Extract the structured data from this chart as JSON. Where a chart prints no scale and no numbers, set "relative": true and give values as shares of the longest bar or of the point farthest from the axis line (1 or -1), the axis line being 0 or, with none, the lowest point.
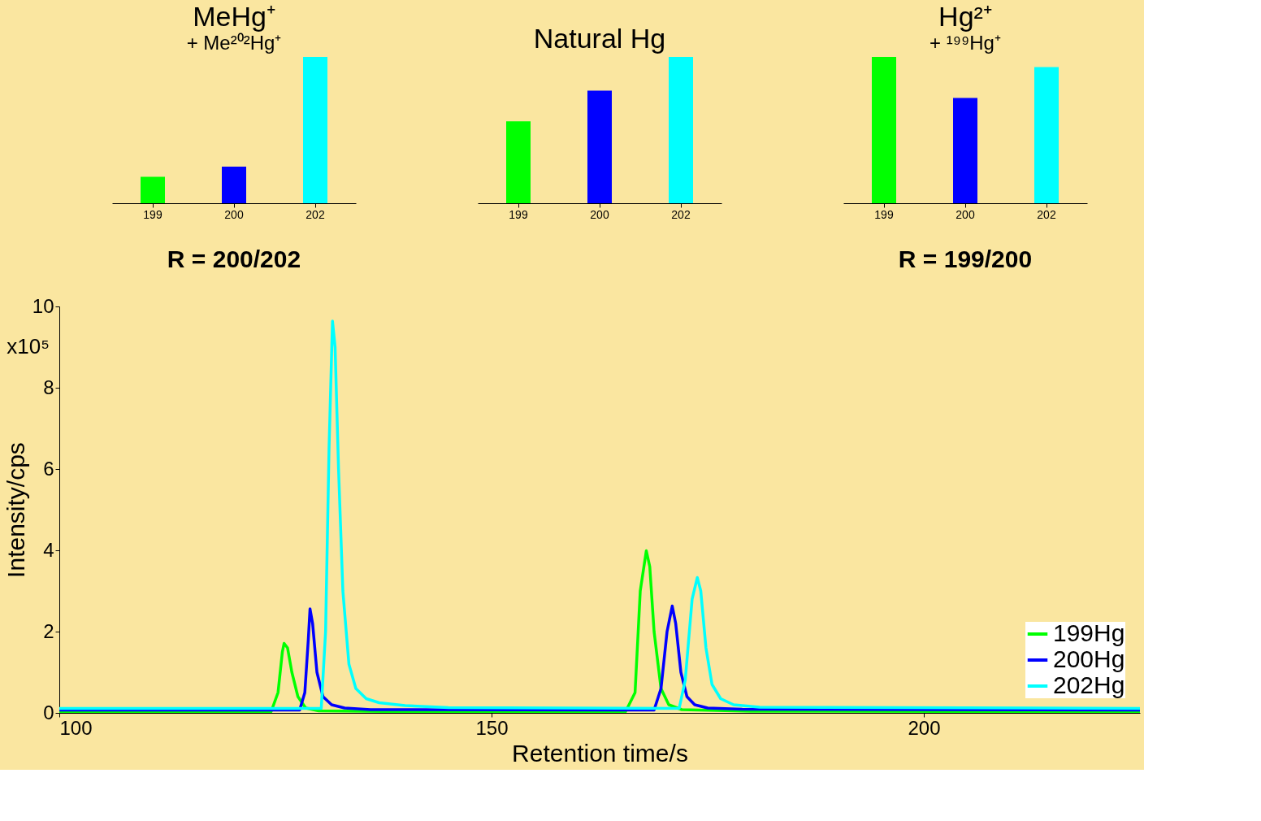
{
  "chart_data": [
    {
      "type": "bar",
      "relative": true,
      "title": "MeHg⁺",
      "subtitle": "+ Me²⁰²Hg⁺",
      "categories": [
        "199",
        "200",
        "202"
      ],
      "values": [
        0.18,
        0.25,
        1
      ],
      "colors": [
        "#00ff00",
        "#0000ff",
        "#00ffff"
      ],
      "annotations": [
        "R = 200/202"
      ]
    },
    {
      "type": "bar",
      "relative": true,
      "title": "Natural Hg",
      "categories": [
        "199",
        "200",
        "202"
      ],
      "values": [
        0.56,
        0.77,
        1
      ],
      "colors": [
        "#00ff00",
        "#0000ff",
        "#00ffff"
      ]
    },
    {
      "type": "bar",
      "relative": true,
      "title": "Hg²⁺",
      "subtitle": "+ ¹⁹⁹Hg⁺",
      "categories": [
        "199",
        "200",
        "202"
      ],
      "values": [
        1,
        0.72,
        0.93
      ],
      "colors": [
        "#00ff00",
        "#0000ff",
        "#00ffff"
      ],
      "annotations": [
        "R = 199/200"
      ]
    },
    {
      "type": "line",
      "xlabel": "Retention time/s",
      "ylabel": "Intensity/cps",
      "annotations": [
        "x10⁵"
      ],
      "xlim": [
        100,
        225
      ],
      "xticks": [
        100,
        150,
        200
      ],
      "ylim": [
        0,
        10
      ],
      "yticks": [
        0,
        2,
        4,
        6,
        8,
        10
      ],
      "grid": false,
      "legend": "bottom right",
      "series": [
        {
          "name": "199Hg",
          "color": "#00ff00",
          "x": [
            100,
            124.5,
            125.3,
            125.8,
            126.0,
            126.4,
            126.9,
            127.6,
            128.5,
            130,
            140,
            165.5,
            166.6,
            167.2,
            167.9,
            168.3,
            168.8,
            169.6,
            170.5,
            172,
            180,
            225
          ],
          "values": [
            0.03,
            0.03,
            0.5,
            1.5,
            1.71,
            1.6,
            1.0,
            0.4,
            0.12,
            0.05,
            0.03,
            0.03,
            0.5,
            3.0,
            3.99,
            3.6,
            2.0,
            0.6,
            0.2,
            0.08,
            0.04,
            0.03
          ]
        },
        {
          "name": "200Hg",
          "color": "#0000ff",
          "x": [
            100,
            127.8,
            128.4,
            128.8,
            129.0,
            129.3,
            129.8,
            130.5,
            131.5,
            133,
            136,
            168.8,
            169.6,
            170.3,
            170.9,
            171.3,
            171.9,
            172.6,
            173.5,
            175,
            179,
            225
          ],
          "values": [
            0.07,
            0.07,
            0.5,
            1.8,
            2.56,
            2.2,
            1.0,
            0.4,
            0.2,
            0.12,
            0.08,
            0.07,
            0.6,
            2.0,
            2.63,
            2.2,
            1.0,
            0.4,
            0.2,
            0.12,
            0.09,
            0.07
          ]
        },
        {
          "name": "202Hg",
          "color": "#00ffff",
          "x": [
            100,
            130.3,
            130.8,
            131.2,
            131.6,
            131.9,
            132.3,
            132.8,
            133.5,
            134.3,
            135.5,
            137,
            140,
            145,
            171.7,
            172.4,
            173.2,
            173.8,
            174.2,
            174.8,
            175.5,
            176.5,
            178,
            181,
            225
          ],
          "values": [
            0.11,
            0.11,
            2.0,
            6.5,
            9.64,
            9.0,
            6.0,
            3.0,
            1.2,
            0.6,
            0.35,
            0.25,
            0.18,
            0.13,
            0.11,
            0.8,
            2.8,
            3.33,
            3.0,
            1.6,
            0.7,
            0.35,
            0.2,
            0.14,
            0.11
          ]
        }
      ]
    }
  ]
}
